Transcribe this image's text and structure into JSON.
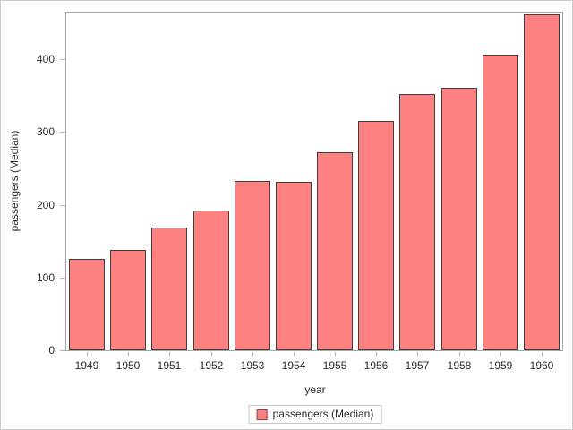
{
  "chart_data": {
    "type": "bar",
    "title": "",
    "categories": [
      "1949",
      "1950",
      "1951",
      "1952",
      "1953",
      "1954",
      "1955",
      "1956",
      "1957",
      "1958",
      "1959",
      "1960"
    ],
    "values": [
      125,
      137.5,
      169,
      192,
      232,
      231.5,
      272,
      315,
      351.5,
      360.5,
      406.5,
      461
    ],
    "series_name": "passengers (Median)",
    "xlabel": "year",
    "ylabel": "passengers (Median)",
    "yticks": [
      0,
      100,
      200,
      300,
      400
    ],
    "ylim": [
      0,
      464
    ],
    "grid": false,
    "legend_position": "bottom",
    "legend_label": "passengers (Median)",
    "colors": {
      "bar_fill": "#fd8181",
      "bar_border": "#3e3e3e",
      "legend_swatch_border": "#a23e3e",
      "axis_line": "#a6a6a6",
      "tick_mark": "#b0b0b0",
      "text": "#2a2a2a",
      "outer_border": "#c9c9c9"
    }
  }
}
